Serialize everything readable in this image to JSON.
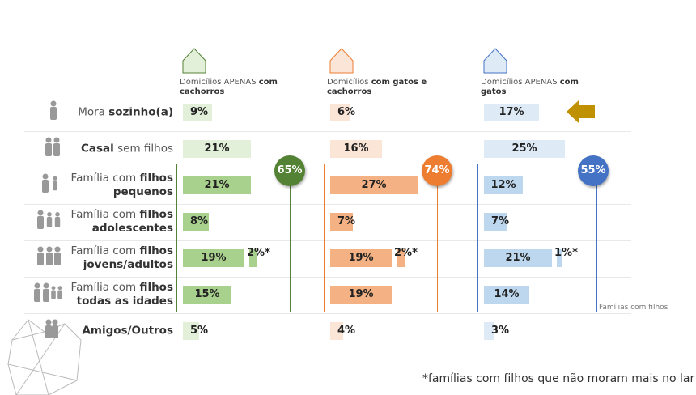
{
  "chart_data": {
    "type": "bar",
    "category_parts": [
      [
        {
          "text": "Mora ",
          "bold": false
        },
        {
          "text": "sozinho(a)",
          "bold": true
        }
      ],
      [
        {
          "text": "Casa",
          "bold": true
        },
        {
          "text": "l",
          "bold": true
        },
        {
          "text": " sem filhos",
          "bold": false
        }
      ],
      [
        {
          "text": "Família com ",
          "bold": false
        },
        {
          "text": "filhos pequenos",
          "bold": true
        }
      ],
      [
        {
          "text": "Família com ",
          "bold": false
        },
        {
          "text": "filhos adolescentes",
          "bold": true
        }
      ],
      [
        {
          "text": "Família com ",
          "bold": false
        },
        {
          "text": "filhos jovens/adultos",
          "bold": true
        }
      ],
      [
        {
          "text": "Família com ",
          "bold": false
        },
        {
          "text": "filhos todas as idades",
          "bold": true
        }
      ],
      [
        {
          "text": "Amigos/Outros",
          "bold": true
        }
      ]
    ],
    "series": [
      {
        "name_parts": [
          {
            "text": "Domicílios APENAS ",
            "bold": false
          },
          {
            "text": "com cachorros",
            "bold": true
          }
        ],
        "color": "#a9d18e",
        "light_color": "#e2f0d9",
        "badge_color": "#548235",
        "values": [
          9,
          21,
          21,
          8,
          19,
          15,
          5
        ],
        "value_labels": [
          "9%",
          "21%",
          "21%",
          "8%",
          "19%",
          "15%",
          "5%"
        ],
        "starred_values": [
          null,
          null,
          null,
          null,
          2,
          null,
          null
        ],
        "starred_labels": [
          null,
          null,
          null,
          null,
          "2%*",
          null,
          null
        ],
        "group_total": 65,
        "group_label": "65%"
      },
      {
        "name_parts": [
          {
            "text": "Domicílios ",
            "bold": false
          },
          {
            "text": "com gatos e cachorros",
            "bold": true
          }
        ],
        "color": "#f4b183",
        "light_color": "#fbe5d6",
        "badge_color": "#ed7d31",
        "values": [
          6,
          16,
          27,
          7,
          19,
          19,
          4
        ],
        "value_labels": [
          "6%",
          "16%",
          "27%",
          "7%",
          "19%",
          "19%",
          "4%"
        ],
        "starred_values": [
          null,
          null,
          null,
          null,
          2,
          null,
          null
        ],
        "starred_labels": [
          null,
          null,
          null,
          null,
          "2%*",
          null,
          null
        ],
        "group_total": 74,
        "group_label": "74%"
      },
      {
        "name_parts": [
          {
            "text": "Domicílios APENAS ",
            "bold": false
          },
          {
            "text": "com gatos",
            "bold": true
          }
        ],
        "color": "#bdd7ee",
        "light_color": "#deebf7",
        "badge_color": "#4472c4",
        "values": [
          17,
          25,
          12,
          7,
          21,
          14,
          3
        ],
        "value_labels": [
          "17%",
          "25%",
          "12%",
          "7%",
          "21%",
          "14%",
          "3%"
        ],
        "starred_values": [
          null,
          null,
          null,
          null,
          1,
          null,
          null
        ],
        "starred_labels": [
          null,
          null,
          null,
          null,
          "1%*",
          null,
          null
        ],
        "group_total": 55,
        "group_label": "55%"
      }
    ],
    "group_legend": "Famílias com filhos",
    "footnote": "*famílias com filhos que não moram mais no lar"
  }
}
